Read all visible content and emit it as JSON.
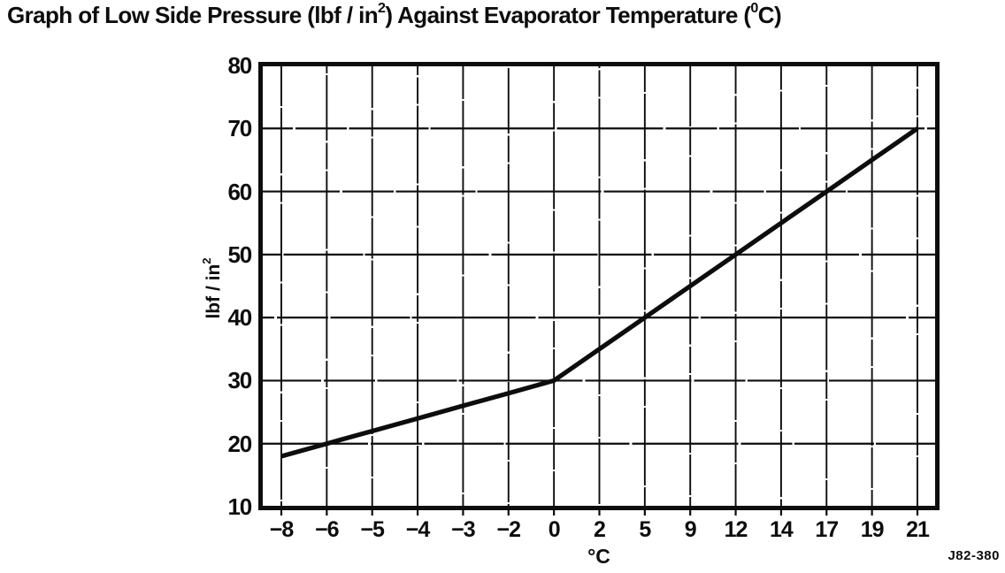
{
  "colors": {
    "ink": "#0d0d0d",
    "background": "#ffffff"
  },
  "title": {
    "pre": "Graph of Low Side Pressure (lbf / in",
    "sup1": "2",
    "mid": ") Against Evaporator Temperature (",
    "sup2": "0",
    "post": "C)"
  },
  "axes": {
    "y_label_text": "lbf / in",
    "y_label_sup": "2",
    "x_label": "°C"
  },
  "figure_code": "J82-380",
  "chart_data": {
    "type": "line",
    "title": "Graph of Low Side Pressure (lbf / in2) Against Evaporator Temperature (0C)",
    "xlabel": "°C",
    "ylabel": "lbf / in2",
    "x_ticks": [
      -8,
      -6,
      -5,
      -4,
      -3,
      -2,
      0,
      2,
      5,
      9,
      12,
      14,
      17,
      19,
      21
    ],
    "x_tick_labels": [
      "−8",
      "−6",
      "−5",
      "−4",
      "−3",
      "−2",
      "0",
      "2",
      "5",
      "9",
      "12",
      "14",
      "17",
      "19",
      "21"
    ],
    "x_scale_note": "ticks equally spaced (non-linear temperature scale)",
    "y_ticks": [
      10,
      20,
      30,
      40,
      50,
      60,
      70,
      80
    ],
    "y_tick_labels": [
      "10",
      "20",
      "30",
      "40",
      "50",
      "60",
      "70",
      "80"
    ],
    "ylim": [
      10,
      80
    ],
    "grid": true,
    "legend": false,
    "series": [
      {
        "name": "low-side-pressure",
        "x": [
          -8,
          -6,
          -5,
          -4,
          -3,
          -2,
          0,
          2,
          5,
          9,
          12,
          14,
          17,
          19,
          21
        ],
        "values": [
          18,
          20,
          22,
          24,
          26,
          28,
          30,
          35,
          40,
          45,
          50,
          55,
          60,
          65,
          70
        ]
      }
    ],
    "annotation": "J82-380"
  }
}
